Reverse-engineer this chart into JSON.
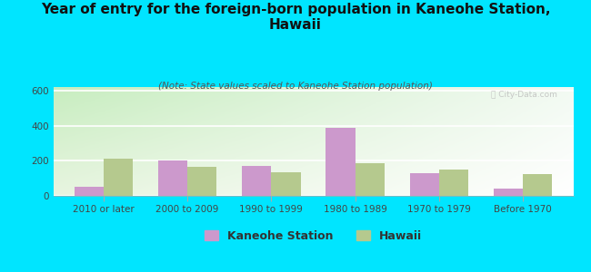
{
  "title": "Year of entry for the foreign-born population in Kaneohe Station,\nHawaii",
  "subtitle": "(Note: State values scaled to Kaneohe Station population)",
  "categories": [
    "2010 or later",
    "2000 to 2009",
    "1990 to 1999",
    "1980 to 1989",
    "1970 to 1979",
    "Before 1970"
  ],
  "kaneohe_values": [
    50,
    200,
    170,
    390,
    130,
    40
  ],
  "hawaii_values": [
    210,
    165,
    135,
    185,
    148,
    125
  ],
  "kaneohe_color": "#cc99cc",
  "hawaii_color": "#b5c98e",
  "background_color": "#00e5ff",
  "ylim": [
    0,
    620
  ],
  "yticks": [
    0,
    200,
    400,
    600
  ],
  "bar_width": 0.35,
  "title_fontsize": 11,
  "subtitle_fontsize": 7.5,
  "tick_fontsize": 7.5,
  "legend_fontsize": 9
}
